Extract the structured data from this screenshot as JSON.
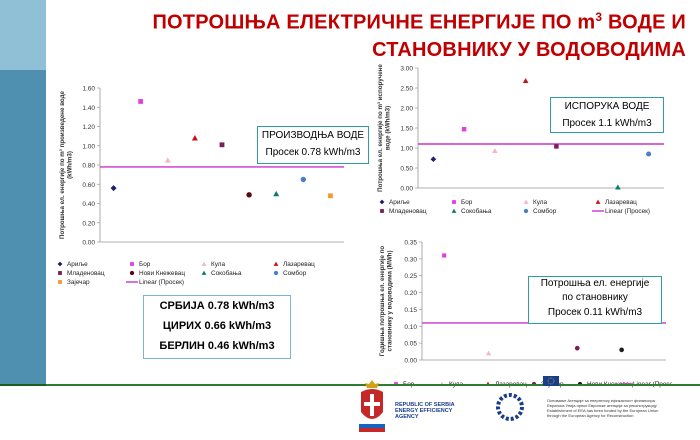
{
  "title_line1": "ПОТРОШЊА ЕЛЕКТРИЧНЕ ЕНЕРГИЈЕ ПО m",
  "title_sup": "3",
  "title_line1_end": " ВОДЕ И",
  "title_line2": "СТАНОВНИКУ У ВОДОВОДИМА",
  "summary": {
    "serbia": "СРБИЈА 0.78 kWh/m3",
    "zurich": "ЦИРИХ 0.66 kWh/m3",
    "berlin": "БЕРЛИН 0.46  kWh/m3"
  },
  "agency": {
    "line1": "REPUBLIC OF SERBIA",
    "line2": "ENERGY EFFICIENCY",
    "line3": "AGENCY",
    "eu_line1": "Основање Агенције за енергетску ефикасност финансира",
    "eu_line2": "Европска Унија преко Европске агенције за реконструкцију",
    "eu_line3": "Establishment of EEA has been funded by the European Union",
    "eu_line4": "through the European Agency for Reconstruction"
  },
  "chart_data": [
    {
      "type": "scatter",
      "id": "production",
      "ylabel": "Потрошња ел. енергије по m³ произведене воде (kWh/m3)",
      "ylim": [
        0,
        1.6
      ],
      "yticks": [
        "0.00",
        "0.20",
        "0.40",
        "0.60",
        "0.80",
        "1.00",
        "1.20",
        "1.40",
        "1.60"
      ],
      "grid": false,
      "box_title": "ПРОИЗВОДЊА ВОДЕ",
      "box_avg": "Просек 0.78 kWh/m3",
      "trend": {
        "name": "Linear (Просек)",
        "value": 0.78,
        "color": "#cc33cc"
      },
      "series": [
        {
          "name": "Ариље",
          "x": 1,
          "y": 0.56,
          "color": "#1f1f6b",
          "marker": "diamond"
        },
        {
          "name": "Бор",
          "x": 2,
          "y": 1.46,
          "color": "#e040e0",
          "marker": "square"
        },
        {
          "name": "Кула",
          "x": 3,
          "y": 0.85,
          "color": "#f2b8c8",
          "marker": "triangle"
        },
        {
          "name": "Лазаревац",
          "x": 4,
          "y": 1.08,
          "color": "#cc1111",
          "marker": "triangle"
        },
        {
          "name": "Младеновац",
          "x": 5,
          "y": 1.01,
          "color": "#7a1f5a",
          "marker": "square"
        },
        {
          "name": "Нови Кнежевац",
          "x": 6,
          "y": 0.49,
          "color": "#5a0a0a",
          "marker": "circle"
        },
        {
          "name": "Сокобања",
          "x": 7,
          "y": 0.5,
          "color": "#0d7a6e",
          "marker": "triangle"
        },
        {
          "name": "Сомбор",
          "x": 8,
          "y": 0.65,
          "color": "#4a7fc8",
          "marker": "circle"
        },
        {
          "name": "Зајечар",
          "x": 9,
          "y": 0.48,
          "color": "#f59a30",
          "marker": "square"
        }
      ]
    },
    {
      "type": "scatter",
      "id": "supply",
      "ylabel": "Потрошња ел. енергије по m³ испоручене воде (kWh/m3)",
      "ylim": [
        0,
        3.0
      ],
      "yticks": [
        "0.00",
        "0.50",
        "1.00",
        "1.50",
        "2.00",
        "2.50",
        "3.00"
      ],
      "grid": false,
      "box_title": "ИСПОРУКА ВОДЕ",
      "box_avg": "Просек 1.1 kWh/m3",
      "trend": {
        "name": "Linear (Просек)",
        "value": 1.1,
        "color": "#cc33cc"
      },
      "series": [
        {
          "name": "Ариље",
          "x": 1,
          "y": 0.72,
          "color": "#1f1f6b",
          "marker": "diamond"
        },
        {
          "name": "Бор",
          "x": 2,
          "y": 1.47,
          "color": "#e040e0",
          "marker": "square"
        },
        {
          "name": "Кула",
          "x": 3,
          "y": 0.93,
          "color": "#f2b8c8",
          "marker": "triangle"
        },
        {
          "name": "Лазаревац",
          "x": 4,
          "y": 2.68,
          "color": "#cc1111",
          "marker": "triangle"
        },
        {
          "name": "Младеновац",
          "x": 5,
          "y": 1.04,
          "color": "#7a1f5a",
          "marker": "square"
        },
        {
          "name": "Сокобања",
          "x": 7,
          "y": 0.02,
          "color": "#0d7a6e",
          "marker": "triangle"
        },
        {
          "name": "Сомбор",
          "x": 8,
          "y": 0.85,
          "color": "#4a7fc8",
          "marker": "circle"
        }
      ]
    },
    {
      "type": "scatter",
      "id": "per-capita",
      "ylabel": "Годишња потрошња ел. енергије по становнику у водоводима (MWh)",
      "ylim": [
        0,
        0.35
      ],
      "yticks": [
        "0.00",
        "0.05",
        "0.10",
        "0.15",
        "0.20",
        "0.25",
        "0.30",
        "0.35"
      ],
      "grid": false,
      "box_title1": "Потрошња ел. енергије",
      "box_title2": "по становнику",
      "box_avg": "Просек 0.11 kWh/m3",
      "trend": {
        "name": "Linear (Просек)",
        "value": 0.11,
        "color": "#cc33cc"
      },
      "series": [
        {
          "name": "Бор",
          "x": 1,
          "y": 0.31,
          "color": "#e040e0",
          "marker": "square"
        },
        {
          "name": "Кула",
          "x": 2,
          "y": 0.02,
          "color": "#f2b8c8",
          "marker": "triangle"
        },
        {
          "name": "Лазаревац",
          "x": 3,
          "y": 0.145,
          "color": "#cc1111",
          "marker": "triangle"
        },
        {
          "name": "Зајечар",
          "x": 4,
          "y": 0.035,
          "color": "#7a1f5a",
          "marker": "circle"
        },
        {
          "name": "Нови Кнежевац",
          "x": 5,
          "y": 0.03,
          "color": "#1f1f1f",
          "marker": "circle"
        }
      ]
    }
  ],
  "legend1": [
    {
      "label": "Ариље",
      "color": "#1f1f6b",
      "marker": "diamond"
    },
    {
      "label": "Бор",
      "color": "#e040e0",
      "marker": "square"
    },
    {
      "label": "Кула",
      "color": "#f2b8c8",
      "marker": "triangle"
    },
    {
      "label": "Лазаревац",
      "color": "#cc1111",
      "marker": "triangle"
    },
    {
      "label": "Младеновац",
      "color": "#7a1f5a",
      "marker": "square"
    },
    {
      "label": "Нови Кнежевац",
      "color": "#5a0a0a",
      "marker": "circle"
    },
    {
      "label": "Сокобања",
      "color": "#0d7a6e",
      "marker": "triangle"
    },
    {
      "label": "Сомбор",
      "color": "#4a7fc8",
      "marker": "circle"
    },
    {
      "label": "Зајечар",
      "color": "#f59a30",
      "marker": "square"
    },
    {
      "label": "Linear (Просек)",
      "color": "#cc33cc",
      "marker": "line"
    }
  ],
  "legend2": [
    {
      "label": "Ариље",
      "color": "#1f1f6b",
      "marker": "diamond"
    },
    {
      "label": "Бор",
      "color": "#e040e0",
      "marker": "square"
    },
    {
      "label": "Кула",
      "color": "#f2b8c8",
      "marker": "triangle"
    },
    {
      "label": "Лазаревац",
      "color": "#cc1111",
      "marker": "triangle"
    },
    {
      "label": "Младеновац",
      "color": "#7a1f5a",
      "marker": "square"
    },
    {
      "label": "Сокобања",
      "color": "#0d7a6e",
      "marker": "triangle"
    },
    {
      "label": "Сомбор",
      "color": "#4a7fc8",
      "marker": "circle"
    },
    {
      "label": "Linear (Просек)",
      "color": "#cc33cc",
      "marker": "line"
    }
  ],
  "legend3": [
    {
      "label": "Бор",
      "color": "#e040e0",
      "marker": "square"
    },
    {
      "label": "Кула",
      "color": "#f2b8c8",
      "marker": "triangle"
    },
    {
      "label": "Лазаревац",
      "color": "#cc1111",
      "marker": "triangle"
    },
    {
      "label": "Зајечар",
      "color": "#7a1f5a",
      "marker": "circle"
    },
    {
      "label": "Нови Кнежевац",
      "color": "#1f1f1f",
      "marker": "circle"
    },
    {
      "label": "Linear (Просек)",
      "color": "#cc33cc",
      "marker": "line"
    }
  ]
}
